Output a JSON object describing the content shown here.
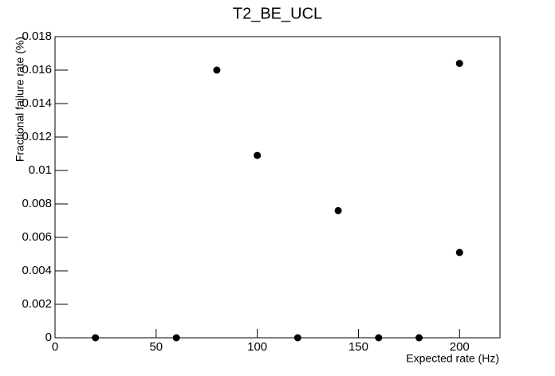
{
  "chart_data": {
    "type": "scatter",
    "title": "T2_BE_UCL",
    "x_label": "Expected rate (Hz)",
    "y_label": "Fractional failure rate (%)",
    "x": [
      20,
      60,
      80,
      100,
      120,
      140,
      160,
      180,
      200,
      200
    ],
    "values": [
      0,
      0,
      0.016,
      0.0109,
      0,
      0.0076,
      0,
      0,
      0.0164,
      0.0051
    ],
    "color": "#000000",
    "xlim": [
      0,
      220
    ],
    "xticks": [
      0,
      50,
      100,
      150,
      200
    ],
    "ylim": [
      0,
      0.018
    ],
    "yticks": [
      0,
      0.002,
      0.004,
      0.006,
      0.008,
      0.01,
      0.012,
      0.014,
      0.016,
      0.018
    ],
    "grid": false
  }
}
